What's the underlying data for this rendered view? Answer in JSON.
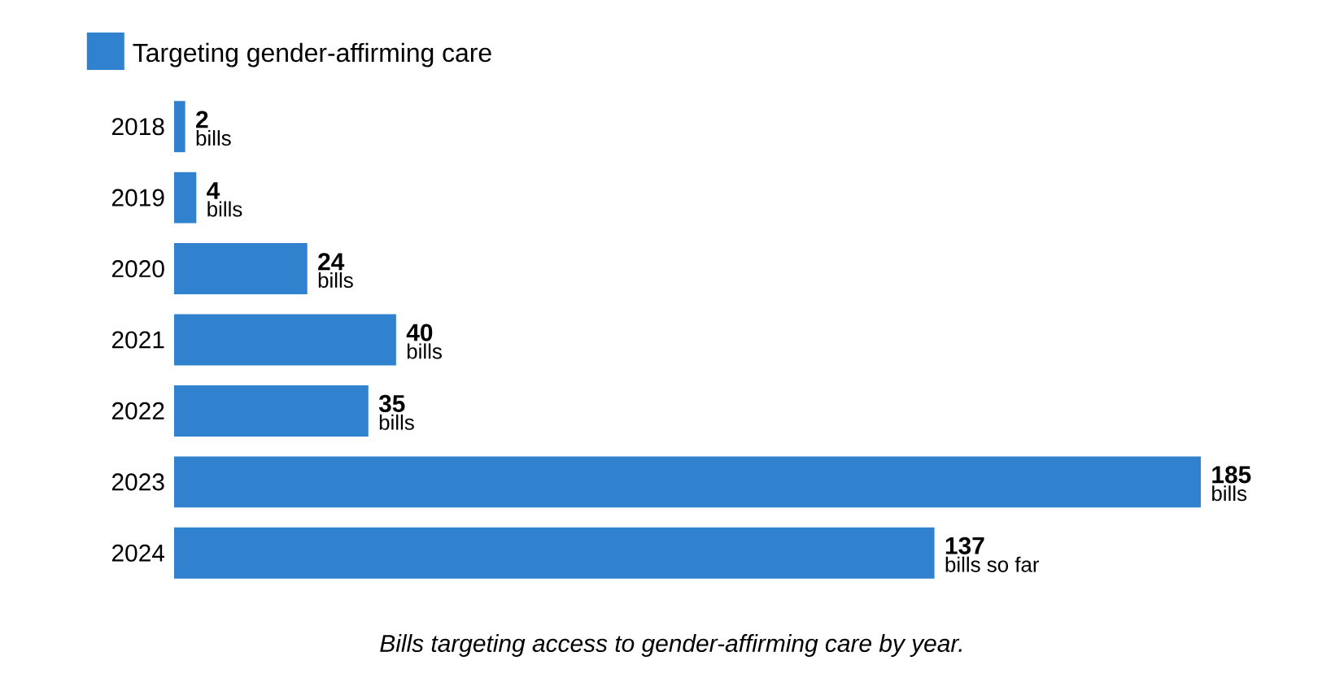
{
  "chart_data": {
    "type": "bar",
    "orientation": "horizontal",
    "categories": [
      "2018",
      "2019",
      "2020",
      "2021",
      "2022",
      "2023",
      "2024"
    ],
    "series": [
      {
        "name": "Targeting gender-affirming care",
        "color": "#3182ce",
        "values": [
          2,
          4,
          24,
          40,
          35,
          185,
          137
        ]
      }
    ],
    "data_labels": true,
    "legend": "top left",
    "tick_labels": "y",
    "annotations": [
      {
        "text": "bills",
        "x": 2,
        "y": "2018"
      },
      {
        "text": "bills",
        "x": 4,
        "y": "2019"
      },
      {
        "text": "bills",
        "x": 24,
        "y": "2020"
      },
      {
        "text": "bills",
        "x": 40,
        "y": "2021"
      },
      {
        "text": "bills",
        "x": 35,
        "y": "2022"
      },
      {
        "text": "bills",
        "x": 185,
        "y": "2023"
      },
      {
        "text": "bills so far",
        "x": 137,
        "y": "2024"
      },
      "Bills targeting access to gender-affirming care by year."
    ]
  }
}
